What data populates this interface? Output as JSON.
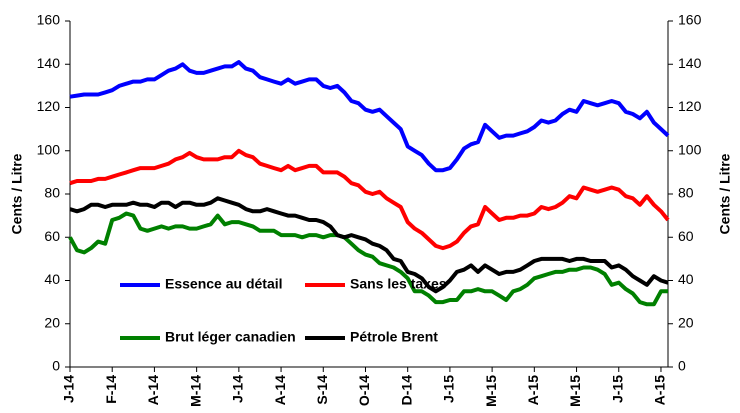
{
  "chart_data": {
    "type": "line",
    "ylabel": "Cents / Litre",
    "y2label": "Cents / Litre",
    "categories": [
      "J-14",
      null,
      null,
      null,
      null,
      null,
      "F-14",
      null,
      null,
      null,
      null,
      null,
      "A-14",
      null,
      null,
      null,
      null,
      null,
      "M-14",
      null,
      null,
      null,
      null,
      null,
      "J-14",
      null,
      null,
      null,
      null,
      null,
      "A-14",
      null,
      null,
      null,
      null,
      null,
      "S-14",
      null,
      null,
      null,
      null,
      null,
      "O-14",
      null,
      null,
      null,
      null,
      null,
      "D-14",
      null,
      null,
      null,
      null,
      null,
      "J-15",
      null,
      null,
      null,
      null,
      null,
      "M-15",
      null,
      null,
      null,
      null,
      null,
      "A-15",
      null,
      null,
      null,
      null,
      null,
      "M-15",
      null,
      null,
      null,
      null,
      null,
      "J-15",
      null,
      null,
      null,
      null,
      null,
      "A-15",
      null
    ],
    "series": [
      {
        "name": "Essence au détail",
        "color": "#0000ff",
        "values": [
          125,
          125.5,
          126,
          126,
          126,
          127,
          128,
          130,
          131,
          132,
          132,
          133,
          133,
          135,
          137,
          138,
          140,
          137,
          136,
          136,
          137,
          138,
          139,
          139,
          141,
          138,
          137,
          134,
          133,
          132,
          131,
          133,
          131,
          132,
          133,
          133,
          130,
          129,
          130,
          127,
          123,
          122,
          119,
          118,
          119,
          116,
          113,
          110,
          102,
          100,
          98,
          94,
          91,
          91,
          92,
          96,
          101,
          103,
          104,
          112,
          109,
          106,
          107,
          107,
          108,
          109,
          111,
          114,
          113,
          114,
          117,
          119,
          118,
          123,
          122,
          121,
          122,
          123,
          122,
          118,
          117,
          115,
          118,
          113,
          110,
          107
        ]
      },
      {
        "name": "Sans les taxes",
        "color": "#ff0000",
        "values": [
          85,
          86,
          86,
          86,
          87,
          87,
          88,
          89,
          90,
          91,
          92,
          92,
          92,
          93,
          94,
          96,
          97,
          99,
          97,
          96,
          96,
          96,
          97,
          97,
          100,
          98,
          97,
          94,
          93,
          92,
          91,
          93,
          91,
          92,
          93,
          93,
          90,
          90,
          90,
          88,
          85,
          84,
          81,
          80,
          81,
          78,
          76,
          74,
          67,
          64,
          62,
          59,
          56,
          55,
          56,
          58,
          62,
          65,
          66,
          74,
          71,
          68,
          69,
          69,
          70,
          70,
          71,
          74,
          73,
          74,
          76,
          79,
          78,
          83,
          82,
          81,
          82,
          83,
          82,
          79,
          78,
          75,
          79,
          75,
          72,
          68
        ]
      },
      {
        "name": "Brut léger canadien",
        "color": "#008000",
        "values": [
          60,
          54,
          53,
          55,
          58,
          57,
          68,
          69,
          71,
          70,
          64,
          63,
          64,
          65,
          64,
          65,
          65,
          64,
          64,
          65,
          66,
          70,
          66,
          67,
          67,
          66,
          65,
          63,
          63,
          63,
          61,
          61,
          61,
          60,
          61,
          61,
          60,
          61,
          61,
          60,
          57,
          54,
          52,
          51,
          48,
          47,
          46,
          44,
          41,
          35,
          35,
          33,
          30,
          30,
          31,
          31,
          35,
          35,
          36,
          35,
          35,
          33,
          31,
          35,
          36,
          38,
          41,
          42,
          43,
          44,
          44,
          45,
          45,
          46,
          46,
          45,
          43,
          38,
          39,
          36,
          34,
          30,
          29,
          29,
          35,
          35
        ]
      },
      {
        "name": "Pétrole Brent",
        "color": "#000000",
        "values": [
          73,
          72,
          73,
          75,
          75,
          74,
          75,
          75,
          75,
          76,
          75,
          75,
          74,
          76,
          76,
          74,
          76,
          76,
          75,
          75,
          76,
          78,
          77,
          76,
          75,
          73,
          72,
          72,
          73,
          72,
          71,
          70,
          70,
          69,
          68,
          68,
          67,
          65,
          61,
          60,
          61,
          60,
          59,
          57,
          56,
          54,
          50,
          49,
          44,
          43,
          41,
          37,
          35,
          37,
          40,
          44,
          45,
          47,
          44,
          47,
          45,
          43,
          44,
          44,
          45,
          47,
          49,
          50,
          50,
          50,
          50,
          49,
          50,
          50,
          49,
          49,
          49,
          46,
          47,
          45,
          42,
          40,
          38,
          42,
          40,
          39
        ]
      }
    ],
    "ylim": [
      0,
      160
    ],
    "yticks": [
      0,
      20,
      40,
      60,
      80,
      100,
      120,
      140,
      160
    ],
    "y2lim": [
      0,
      160
    ],
    "y2ticks": [
      0,
      20,
      40,
      60,
      80,
      100,
      120,
      140,
      160
    ],
    "grid": false
  }
}
